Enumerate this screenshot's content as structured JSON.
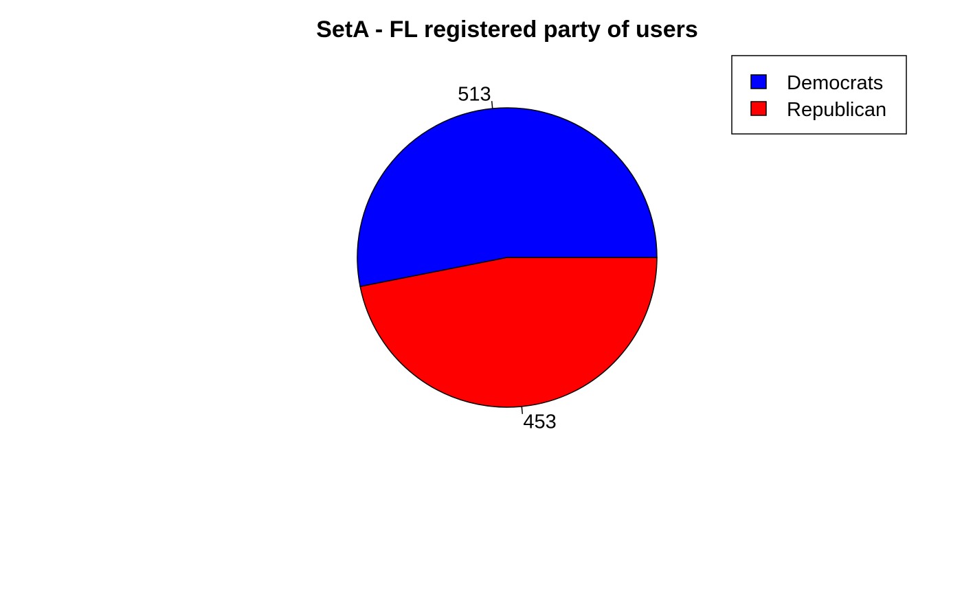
{
  "chart_data": {
    "type": "pie",
    "title": "SetA - FL registered party of users",
    "categories": [
      "Democrats",
      "Republican"
    ],
    "values": [
      513,
      453
    ],
    "colors": [
      "#0000FF",
      "#FF0000"
    ],
    "start_angle_deg": 0,
    "direction": "counterclockwise",
    "slice_labels": [
      "513",
      "453"
    ],
    "legend": {
      "position": "top-right",
      "entries": [
        "Democrats",
        "Republican"
      ]
    }
  }
}
